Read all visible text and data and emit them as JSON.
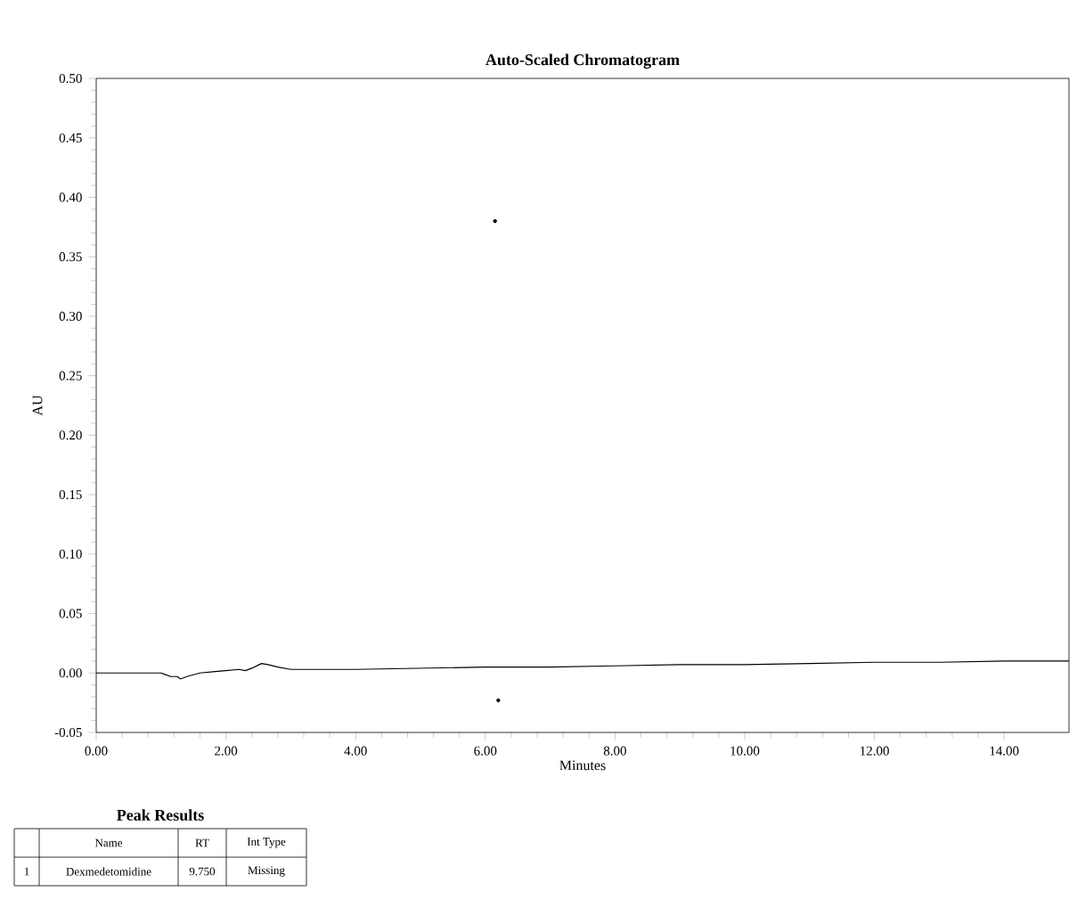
{
  "chart_data": {
    "type": "line",
    "title": "Auto-Scaled Chromatogram",
    "xlabel": "Minutes",
    "ylabel": "AU",
    "series": [
      {
        "color": "#000000",
        "x": [
          0,
          0.5,
          1.0,
          1.05,
          1.15,
          1.25,
          1.3,
          1.4,
          1.6,
          1.8,
          2.0,
          2.2,
          2.3,
          2.4,
          2.55,
          2.65,
          2.8,
          3.0,
          3.5,
          4.0,
          5.0,
          6.0,
          7.0,
          8.0,
          9.0,
          10.0,
          11.0,
          12.0,
          13.0,
          14.0,
          15.0
        ],
        "values": [
          0,
          0,
          0,
          -0.001,
          -0.003,
          -0.003,
          -0.005,
          -0.003,
          0.0,
          0.001,
          0.002,
          0.003,
          0.002,
          0.004,
          0.008,
          0.007,
          0.005,
          0.003,
          0.003,
          0.003,
          0.004,
          0.005,
          0.005,
          0.006,
          0.007,
          0.007,
          0.008,
          0.009,
          0.009,
          0.01,
          0.01
        ]
      },
      {
        "type": "scatter",
        "color": "#000000",
        "x": [
          6.15,
          6.2
        ],
        "values": [
          0.38,
          -0.023
        ]
      }
    ],
    "xlim": [
      0,
      15
    ],
    "ylim": [
      -0.05,
      0.5
    ],
    "xticks": [
      {
        "value": 0,
        "label": "0.00"
      },
      {
        "value": 2,
        "label": "2.00"
      },
      {
        "value": 4,
        "label": "4.00"
      },
      {
        "value": 6,
        "label": "6.00"
      },
      {
        "value": 8,
        "label": "8.00"
      },
      {
        "value": 10,
        "label": "10.00"
      },
      {
        "value": 12,
        "label": "12.00"
      },
      {
        "value": 14,
        "label": "14.00"
      }
    ],
    "yticks": [
      {
        "value": -0.05,
        "label": "-0.05"
      },
      {
        "value": 0,
        "label": "0.00"
      },
      {
        "value": 0.05,
        "label": "0.05"
      },
      {
        "value": 0.1,
        "label": "0.10"
      },
      {
        "value": 0.15,
        "label": "0.15"
      },
      {
        "value": 0.2,
        "label": "0.20"
      },
      {
        "value": 0.25,
        "label": "0.25"
      },
      {
        "value": 0.3,
        "label": "0.30"
      },
      {
        "value": 0.35,
        "label": "0.35"
      },
      {
        "value": 0.4,
        "label": "0.40"
      },
      {
        "value": 0.45,
        "label": "0.45"
      },
      {
        "value": 0.5,
        "label": "0.50"
      }
    ],
    "grid": false,
    "annotations": [
      "Peak Results",
      "Name",
      "RT",
      "Int Type",
      "1",
      "Dexmedetomidine",
      "9.750",
      "Missing"
    ]
  }
}
